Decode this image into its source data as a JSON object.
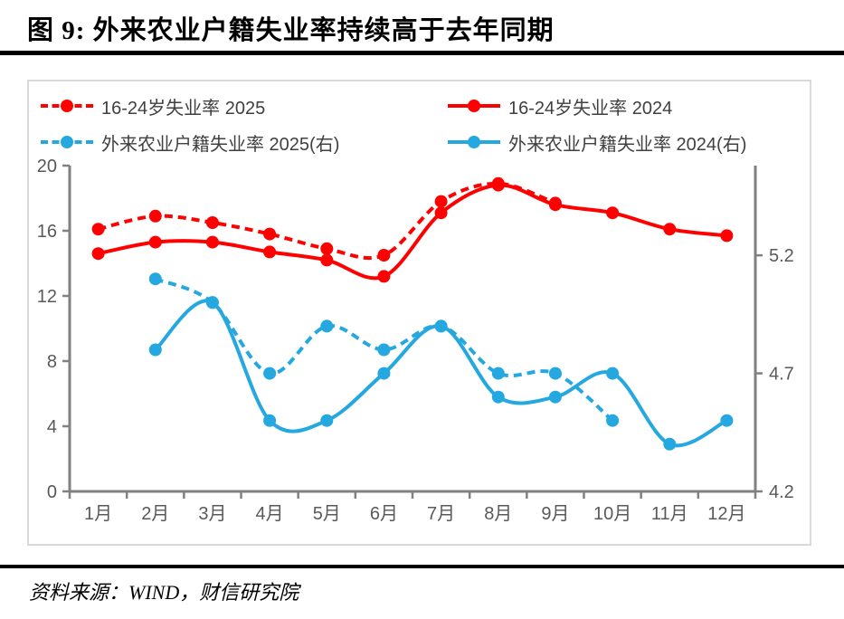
{
  "figure": {
    "title": "图 9:  外来农业户籍失业率持续高于去年同期",
    "source": "资料来源：WIND，财信研究院"
  },
  "legend": {
    "items": [
      {
        "label": "16-24岁失业率 2025",
        "color": "#FF0000",
        "dash": true
      },
      {
        "label": "16-24岁失业率 2024",
        "color": "#FF0000",
        "dash": false
      },
      {
        "label": "外来农业户籍失业率 2025(右)",
        "color": "#25A8E0",
        "dash": true
      },
      {
        "label": "外来农业户籍失业率 2024(右)",
        "color": "#25A8E0",
        "dash": false
      }
    ]
  },
  "chart_data": {
    "type": "line",
    "title": "外来农业户籍失业率持续高于去年同期",
    "categories": [
      "1月",
      "2月",
      "3月",
      "4月",
      "5月",
      "6月",
      "7月",
      "8月",
      "9月",
      "10月",
      "11月",
      "12月"
    ],
    "left_axis": {
      "min": 0,
      "max": 20,
      "ticks": [
        0,
        4,
        8,
        12,
        16,
        20
      ],
      "labels": [
        "0",
        "4",
        "8",
        "12",
        "16",
        "20"
      ]
    },
    "right_axis": {
      "min": 4.2,
      "max": 5.58,
      "ticks": [
        4.2,
        4.7,
        5.2
      ],
      "labels": [
        "4.2",
        "4.7",
        "5.2"
      ]
    },
    "grid": false,
    "legend_position": "top-left-inside",
    "axis_color": "#808080",
    "tick_label_color": "#595959",
    "series": [
      {
        "name": "16-24岁失业率 2025",
        "axis": "left",
        "color": "#FF0000",
        "dash": true,
        "start_month": 1,
        "values": [
          16.1,
          16.9,
          16.5,
          15.8,
          14.9,
          14.5,
          17.8,
          18.9,
          17.7
        ]
      },
      {
        "name": "16-24岁失业率 2024",
        "axis": "left",
        "color": "#FF0000",
        "dash": false,
        "start_month": 1,
        "values": [
          14.6,
          15.3,
          15.3,
          14.7,
          14.2,
          13.2,
          17.1,
          18.8,
          17.6,
          17.1,
          16.1,
          15.7
        ]
      },
      {
        "name": "外来农业户籍失业率 2025(右)",
        "axis": "right",
        "color": "#25A8E0",
        "dash": true,
        "start_month": 2,
        "values": [
          5.1,
          5.0,
          4.7,
          4.9,
          4.8,
          4.9,
          4.7,
          4.7,
          4.5
        ]
      },
      {
        "name": "外来农业户籍失业率 2024(右)",
        "axis": "right",
        "color": "#25A8E0",
        "dash": false,
        "start_month": 2,
        "values": [
          4.8,
          5.0,
          4.5,
          4.5,
          4.7,
          4.9,
          4.6,
          4.6,
          4.7,
          4.4,
          4.5
        ]
      }
    ]
  }
}
